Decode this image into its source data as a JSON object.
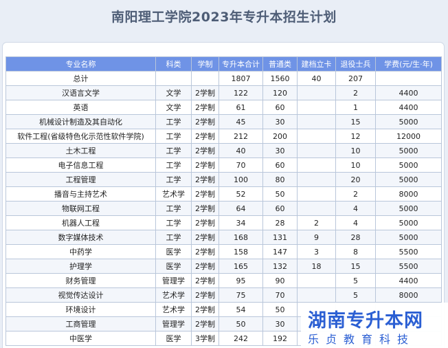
{
  "page": {
    "title": "南阳理工学院2023年专升本招生计划"
  },
  "table": {
    "headers": [
      "专业名称",
      "科类",
      "学制",
      "专升本合计",
      "普通类",
      "建档立卡",
      "退役士兵",
      "学费(元/生·年)"
    ],
    "rows": [
      [
        "总计",
        "",
        "",
        "1807",
        "1560",
        "40",
        "207",
        ""
      ],
      [
        "汉语言文学",
        "文学",
        "2学制",
        "122",
        "120",
        "",
        "2",
        "4400"
      ],
      [
        "英语",
        "文学",
        "2学制",
        "61",
        "60",
        "",
        "1",
        "4400"
      ],
      [
        "机械设计制造及其自动化",
        "工学",
        "2学制",
        "45",
        "30",
        "",
        "15",
        "5000"
      ],
      [
        "软件工程(省级特色化示范性软件学院)",
        "工学",
        "2学制",
        "212",
        "200",
        "",
        "12",
        "12000"
      ],
      [
        "土木工程",
        "工学",
        "2学制",
        "40",
        "30",
        "",
        "10",
        "5000"
      ],
      [
        "电子信息工程",
        "工学",
        "2学制",
        "70",
        "60",
        "",
        "10",
        "5000"
      ],
      [
        "工程管理",
        "工学",
        "2学制",
        "100",
        "80",
        "",
        "20",
        "5000"
      ],
      [
        "播音与主持艺术",
        "艺术学",
        "2学制",
        "52",
        "50",
        "",
        "2",
        "8000"
      ],
      [
        "物联网工程",
        "工学",
        "2学制",
        "64",
        "60",
        "",
        "4",
        "5000"
      ],
      [
        "机器人工程",
        "工学",
        "2学制",
        "34",
        "28",
        "2",
        "4",
        "5000"
      ],
      [
        "数字媒体技术",
        "工学",
        "2学制",
        "168",
        "131",
        "9",
        "28",
        "5000"
      ],
      [
        "中药学",
        "医学",
        "2学制",
        "158",
        "147",
        "3",
        "8",
        "5500"
      ],
      [
        "护理学",
        "医学",
        "2学制",
        "165",
        "132",
        "18",
        "15",
        "5500"
      ],
      [
        "财务管理",
        "管理学",
        "2学制",
        "95",
        "90",
        "",
        "5",
        "4400"
      ],
      [
        "视觉传达设计",
        "艺术学",
        "2学制",
        "75",
        "70",
        "",
        "5",
        "8000"
      ],
      [
        "环境设计",
        "艺术学",
        "2学制",
        "54",
        "50",
        "",
        "",
        ""
      ],
      [
        "工商管理",
        "管理学",
        "2学制",
        "50",
        "30",
        "",
        "",
        ""
      ],
      [
        "中医学",
        "医学",
        "3学制",
        "242",
        "192",
        "",
        "",
        ""
      ]
    ]
  },
  "watermark": {
    "brand": "湖南专升本网",
    "subtitle": "乐贞教育科技"
  }
}
